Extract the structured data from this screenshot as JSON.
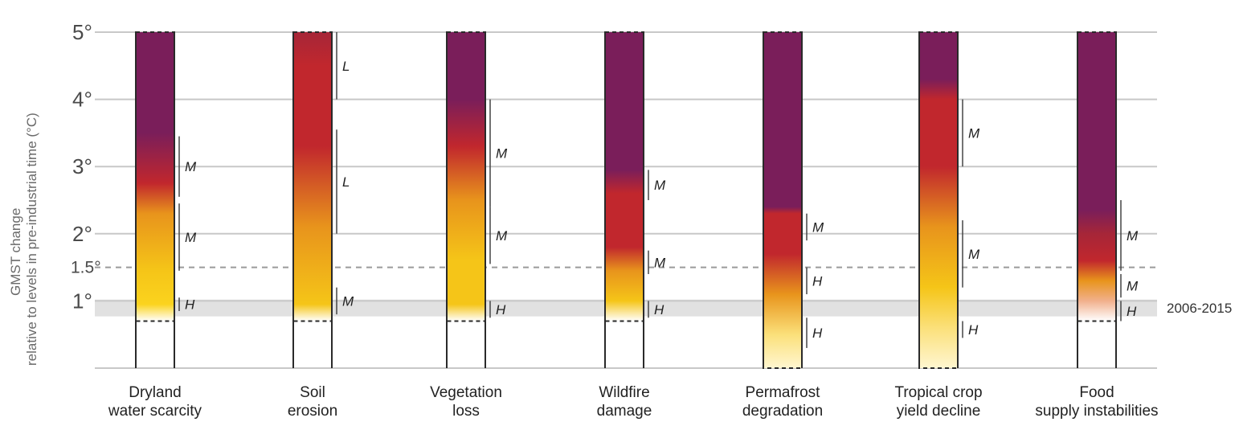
{
  "chart_data": {
    "type": "bar",
    "ylabel_line1": "GMST change",
    "ylabel_line2": "relative to levels in pre-industrial time (°C)",
    "ylim": [
      0,
      5
    ],
    "yticks": [
      {
        "value": 5,
        "label": "5°"
      },
      {
        "value": 4,
        "label": "4°"
      },
      {
        "value": 3,
        "label": "3°"
      },
      {
        "value": 2,
        "label": "2°"
      },
      {
        "value": 1.5,
        "label": "1.5°"
      },
      {
        "value": 1,
        "label": "1°"
      }
    ],
    "reference_band": {
      "from": 0.77,
      "to": 1.02,
      "label": "2006-2015"
    },
    "reference_line": 1.5,
    "colors": {
      "undetectable": "#ffffff",
      "moderate": "#f5c518",
      "high": "#c1272d",
      "very_high": "#7a1e5a",
      "band": "#e1e1e1",
      "grid": "#c8c8c8"
    },
    "categories": [
      {
        "label_lines": [
          "Dryland",
          "water scarcity"
        ],
        "bar_start": 0.7,
        "stops": [
          [
            0.7,
            "#ffffff"
          ],
          [
            0.95,
            "#fbd31e"
          ],
          [
            1.45,
            "#f5c518"
          ],
          [
            2.3,
            "#e8941c"
          ],
          [
            2.75,
            "#c1272d"
          ],
          [
            3.5,
            "#7a1e5a"
          ],
          [
            5.0,
            "#7a1e5a"
          ]
        ],
        "confidence": [
          {
            "from": 0.85,
            "to": 1.05,
            "level": "H"
          },
          {
            "from": 1.45,
            "to": 2.45,
            "level": "M"
          },
          {
            "from": 2.55,
            "to": 3.45,
            "level": "M"
          }
        ]
      },
      {
        "label_lines": [
          "Soil",
          "erosion"
        ],
        "bar_start": 0.7,
        "stops": [
          [
            0.7,
            "#ffffff"
          ],
          [
            0.95,
            "#f5c518"
          ],
          [
            2.1,
            "#e8941c"
          ],
          [
            3.3,
            "#c1272d"
          ],
          [
            4.5,
            "#c1272d"
          ],
          [
            5.0,
            "#a62638"
          ]
        ],
        "confidence": [
          {
            "from": 0.8,
            "to": 1.2,
            "level": "M"
          },
          {
            "from": 2.0,
            "to": 3.55,
            "level": "L"
          },
          {
            "from": 4.0,
            "to": 5.0,
            "level": "L"
          }
        ]
      },
      {
        "label_lines": [
          "Vegetation",
          "loss"
        ],
        "bar_start": 0.7,
        "stops": [
          [
            0.7,
            "#ffffff"
          ],
          [
            0.95,
            "#f5c518"
          ],
          [
            1.6,
            "#f5c518"
          ],
          [
            2.5,
            "#e8941c"
          ],
          [
            3.3,
            "#c1272d"
          ],
          [
            4.0,
            "#7a1e5a"
          ],
          [
            5.0,
            "#7a1e5a"
          ]
        ],
        "confidence": [
          {
            "from": 0.75,
            "to": 1.0,
            "level": "H"
          },
          {
            "from": 1.55,
            "to": 2.4,
            "level": "M"
          },
          {
            "from": 2.4,
            "to": 4.0,
            "level": "M"
          }
        ]
      },
      {
        "label_lines": [
          "Wildfire",
          "damage"
        ],
        "bar_start": 0.7,
        "stops": [
          [
            0.7,
            "#ffffff"
          ],
          [
            1.0,
            "#f5c518"
          ],
          [
            1.45,
            "#e8941c"
          ],
          [
            1.8,
            "#c1272d"
          ],
          [
            2.6,
            "#c1272d"
          ],
          [
            2.95,
            "#7a1e5a"
          ],
          [
            5.0,
            "#7a1e5a"
          ]
        ],
        "confidence": [
          {
            "from": 0.75,
            "to": 1.0,
            "level": "H"
          },
          {
            "from": 1.4,
            "to": 1.75,
            "level": "M"
          },
          {
            "from": 2.5,
            "to": 2.95,
            "level": "M"
          }
        ]
      },
      {
        "label_lines": [
          "Permafrost",
          "degradation"
        ],
        "bar_start": 0.0,
        "stops": [
          [
            0.0,
            "#fff6d0"
          ],
          [
            0.5,
            "#fbe07a"
          ],
          [
            1.1,
            "#e8941c"
          ],
          [
            1.7,
            "#c1272d"
          ],
          [
            2.3,
            "#c1272d"
          ],
          [
            2.4,
            "#7a1e5a"
          ],
          [
            5.0,
            "#7a1e5a"
          ]
        ],
        "confidence": [
          {
            "from": 0.3,
            "to": 0.75,
            "level": "H"
          },
          {
            "from": 1.1,
            "to": 1.5,
            "level": "H"
          },
          {
            "from": 1.9,
            "to": 2.3,
            "level": "M"
          }
        ]
      },
      {
        "label_lines": [
          "Tropical crop",
          "yield decline"
        ],
        "bar_start": 0.0,
        "stops": [
          [
            0.0,
            "#fff6d0"
          ],
          [
            0.6,
            "#fbe07a"
          ],
          [
            1.2,
            "#f5c518"
          ],
          [
            2.1,
            "#e8941c"
          ],
          [
            3.0,
            "#c1272d"
          ],
          [
            4.0,
            "#c1272d"
          ],
          [
            4.3,
            "#7a1e5a"
          ],
          [
            5.0,
            "#7a1e5a"
          ]
        ],
        "confidence": [
          {
            "from": 0.45,
            "to": 0.7,
            "level": "H"
          },
          {
            "from": 1.2,
            "to": 2.2,
            "level": "M"
          },
          {
            "from": 3.0,
            "to": 4.0,
            "level": "M"
          }
        ]
      },
      {
        "label_lines": [
          "Food",
          "supply instabilities"
        ],
        "bar_start": 0.7,
        "stops": [
          [
            0.7,
            "#ffffff"
          ],
          [
            1.0,
            "#f1b08c"
          ],
          [
            1.3,
            "#e8941c"
          ],
          [
            1.6,
            "#c1272d"
          ],
          [
            2.0,
            "#a62638"
          ],
          [
            2.35,
            "#7a1e5a"
          ],
          [
            5.0,
            "#7a1e5a"
          ]
        ],
        "confidence": [
          {
            "from": 0.7,
            "to": 1.0,
            "level": "H"
          },
          {
            "from": 1.05,
            "to": 1.4,
            "level": "M"
          },
          {
            "from": 1.45,
            "to": 2.5,
            "level": "M"
          }
        ]
      }
    ]
  }
}
